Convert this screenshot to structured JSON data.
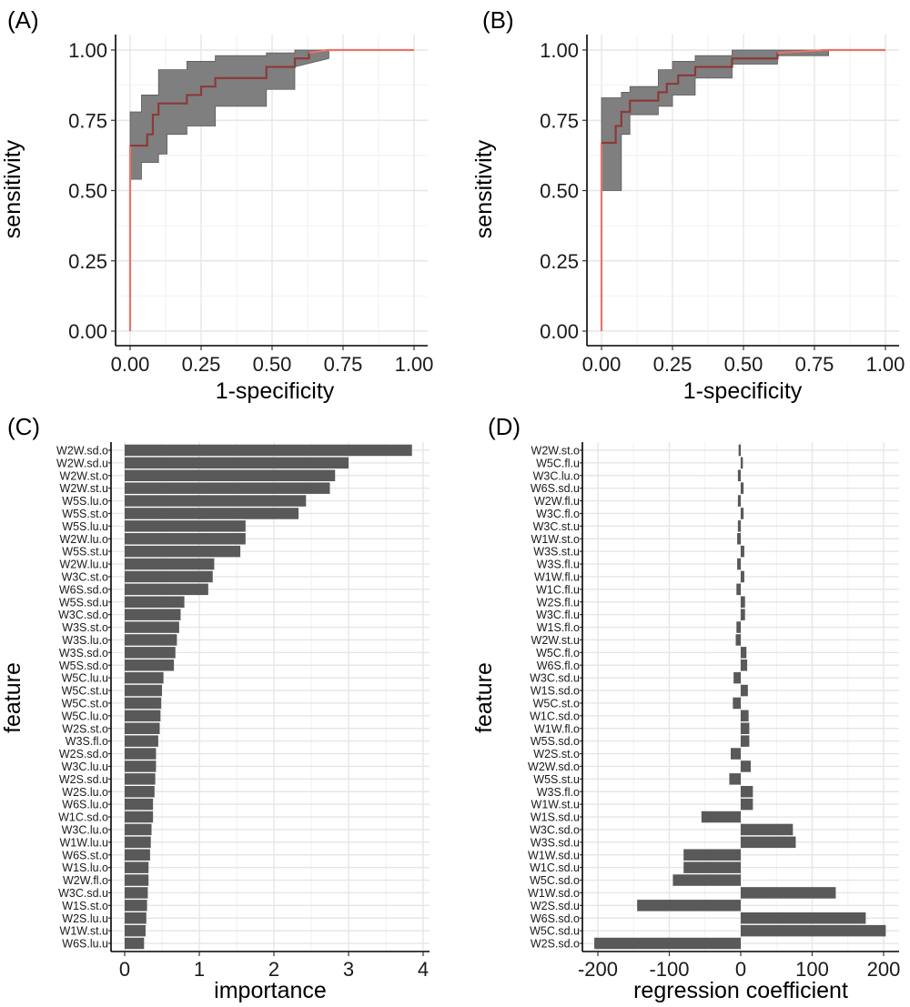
{
  "chart_data": [
    {
      "panel": "(A)",
      "type": "line",
      "xlabel": "1-specificity",
      "ylabel": "sensitivity",
      "xlim": [
        0,
        1
      ],
      "ylim": [
        0,
        1
      ],
      "xticks": [
        "0.00",
        "0.25",
        "0.50",
        "0.75",
        "1.00"
      ],
      "yticks": [
        "0.00",
        "0.25",
        "0.50",
        "0.75",
        "1.00"
      ],
      "grid": true,
      "roc": {
        "x": [
          0,
          0,
          0,
          0.06,
          0.06,
          0.08,
          0.08,
          0.1,
          0.1,
          0.2,
          0.2,
          0.25,
          0.25,
          0.3,
          0.3,
          0.48,
          0.48,
          0.58,
          0.58,
          0.63,
          0.63,
          0.7,
          1.0
        ],
        "y": [
          0,
          0.55,
          0.66,
          0.66,
          0.7,
          0.7,
          0.77,
          0.77,
          0.81,
          0.81,
          0.84,
          0.84,
          0.87,
          0.87,
          0.9,
          0.9,
          0.94,
          0.94,
          0.97,
          0.97,
          0.99,
          1.0,
          1.0
        ]
      },
      "ci_band": {
        "x": [
          0,
          0.04,
          0.04,
          0.1,
          0.1,
          0.13,
          0.13,
          0.2,
          0.2,
          0.3,
          0.3,
          0.48,
          0.48,
          0.58,
          0.58,
          0.7
        ],
        "upper": [
          0.78,
          0.78,
          0.84,
          0.84,
          0.93,
          0.93,
          0.93,
          0.93,
          0.96,
          0.96,
          0.98,
          0.98,
          0.99,
          0.99,
          1.0,
          1.0
        ],
        "lower": [
          0.54,
          0.54,
          0.6,
          0.6,
          0.63,
          0.63,
          0.7,
          0.7,
          0.73,
          0.73,
          0.8,
          0.8,
          0.86,
          0.86,
          0.94,
          0.97
        ]
      }
    },
    {
      "panel": "(B)",
      "type": "line",
      "xlabel": "1-specificity",
      "ylabel": "sensitivity",
      "xlim": [
        0,
        1
      ],
      "ylim": [
        0,
        1
      ],
      "xticks": [
        "0.00",
        "0.25",
        "0.50",
        "0.75",
        "1.00"
      ],
      "yticks": [
        "0.00",
        "0.25",
        "0.50",
        "0.75",
        "1.00"
      ],
      "grid": true,
      "roc": {
        "x": [
          0,
          0,
          0,
          0.05,
          0.05,
          0.07,
          0.07,
          0.1,
          0.1,
          0.2,
          0.2,
          0.23,
          0.23,
          0.27,
          0.27,
          0.33,
          0.33,
          0.46,
          0.46,
          0.62,
          0.62,
          0.8,
          1.0
        ],
        "y": [
          0,
          0.5,
          0.67,
          0.67,
          0.73,
          0.73,
          0.78,
          0.78,
          0.82,
          0.82,
          0.85,
          0.85,
          0.88,
          0.88,
          0.91,
          0.91,
          0.94,
          0.94,
          0.97,
          0.97,
          0.99,
          1.0,
          1.0
        ]
      },
      "ci_band": {
        "x": [
          0,
          0.07,
          0.07,
          0.1,
          0.1,
          0.2,
          0.2,
          0.25,
          0.25,
          0.33,
          0.33,
          0.46,
          0.46,
          0.62,
          0.62,
          0.8
        ],
        "upper": [
          0.83,
          0.83,
          0.85,
          0.85,
          0.87,
          0.87,
          0.93,
          0.93,
          0.96,
          0.96,
          0.98,
          0.98,
          1.0,
          1.0,
          1.0,
          1.0
        ],
        "lower": [
          0.5,
          0.5,
          0.7,
          0.7,
          0.77,
          0.77,
          0.8,
          0.8,
          0.84,
          0.84,
          0.9,
          0.9,
          0.95,
          0.95,
          0.98,
          0.98
        ]
      }
    },
    {
      "panel": "(C)",
      "type": "bar",
      "orientation": "horizontal",
      "xlabel": "importance",
      "ylabel": "feature",
      "xlim": [
        0,
        4
      ],
      "xticks": [
        "0",
        "1",
        "2",
        "3",
        "4"
      ],
      "grid": true,
      "categories": [
        "W2W.sd.o",
        "W2W.sd.u",
        "W2W.st.o",
        "W2W.st.u",
        "W5S.lu.o",
        "W5S.st.o",
        "W5S.lu.u",
        "W2W.lu.o",
        "W5S.st.u",
        "W2W.lu.u",
        "W3C.st.o",
        "W6S.sd.o",
        "W5S.sd.u",
        "W3C.sd.o",
        "W3S.st.o",
        "W3S.lu.o",
        "W3S.sd.o",
        "W5S.sd.o",
        "W5C.lu.u",
        "W5C.st.u",
        "W5C.st.o",
        "W5C.lu.o",
        "W2S.st.o",
        "W3S.fl.o",
        "W2S.sd.o",
        "W3C.lu.u",
        "W2S.sd.u",
        "W2S.lu.o",
        "W6S.lu.o",
        "W1C.sd.o",
        "W3C.lu.o",
        "W1W.lu.u",
        "W6S.st.o",
        "W1S.lu.o",
        "W2W.fl.o",
        "W3C.sd.u",
        "W1S.st.o",
        "W2S.lu.u",
        "W1W.st.u",
        "W6S.lu.u"
      ],
      "values": [
        3.85,
        3.0,
        2.82,
        2.75,
        2.43,
        2.33,
        1.62,
        1.62,
        1.55,
        1.2,
        1.18,
        1.12,
        0.8,
        0.75,
        0.73,
        0.7,
        0.68,
        0.66,
        0.52,
        0.5,
        0.49,
        0.48,
        0.47,
        0.45,
        0.42,
        0.42,
        0.41,
        0.4,
        0.38,
        0.38,
        0.36,
        0.35,
        0.34,
        0.32,
        0.32,
        0.31,
        0.3,
        0.29,
        0.28,
        0.26
      ]
    },
    {
      "panel": "(D)",
      "type": "bar",
      "orientation": "horizontal",
      "xlabel": "regression coefficient",
      "ylabel": "feature",
      "xlim": [
        -205,
        205
      ],
      "xticks": [
        "-200",
        "-100",
        "0",
        "100",
        "200"
      ],
      "grid": true,
      "categories": [
        "W2W.st.o",
        "W5C.fl.u",
        "W3C.lu.o",
        "W6S.sd.u",
        "W2W.fl.u",
        "W3C.fl.o",
        "W3C.st.u",
        "W1W.st.o",
        "W3S.st.u",
        "W3S.fl.u",
        "W1W.fl.u",
        "W1C.fl.u",
        "W2S.fl.u",
        "W3C.fl.u",
        "W1S.fl.o",
        "W2W.st.u",
        "W5C.fl.o",
        "W6S.fl.o",
        "W3C.sd.u",
        "W1S.sd.o",
        "W5C.st.o",
        "W1C.sd.o",
        "W1W.fl.o",
        "W5S.sd.o",
        "W2S.st.o",
        "W2W.sd.o",
        "W5S.st.u",
        "W3S.fl.o",
        "W1W.st.u",
        "W1S.sd.u",
        "W3C.sd.o",
        "W3S.sd.u",
        "W1W.sd.u",
        "W1C.sd.u",
        "W5C.sd.o",
        "W1W.sd.o",
        "W2S.sd.u",
        "W6S.sd.o",
        "W5C.sd.u",
        "W2S.sd.o"
      ],
      "values": [
        -3,
        3,
        -4,
        4,
        -4,
        4,
        -4,
        -5,
        5,
        -5,
        5,
        -6,
        6,
        6,
        -6,
        -7,
        8,
        9,
        -10,
        10,
        -11,
        11,
        12,
        12,
        -14,
        14,
        -16,
        17,
        17,
        -55,
        73,
        77,
        -80,
        -80,
        -95,
        133,
        -145,
        175,
        203,
        -205
      ]
    }
  ]
}
